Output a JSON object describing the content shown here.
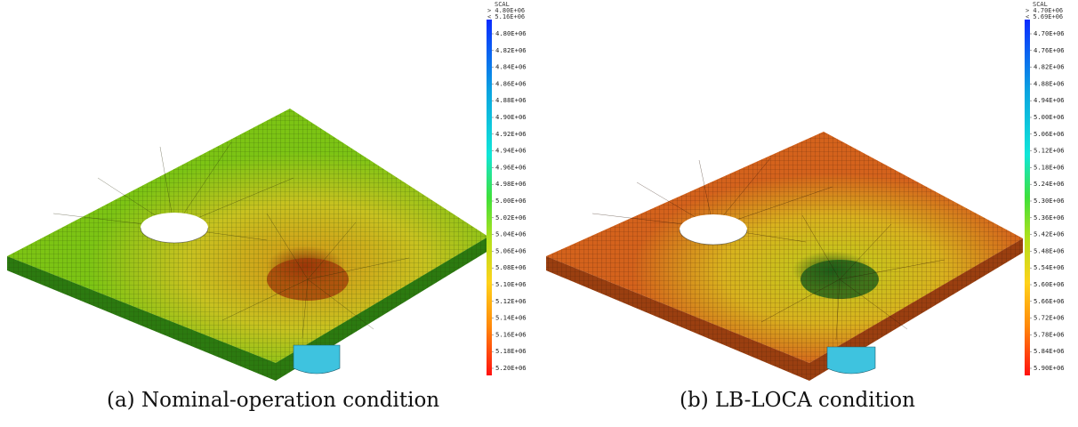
{
  "panels": [
    {
      "id": "a",
      "caption": "(a) Nominal-operation condition",
      "colorbar": {
        "title": "SCAL",
        "header_top": "> 4.80E+06",
        "header_bottom": "< 5.16E+06",
        "ticks": [
          "4.80E+06",
          "4.82E+06",
          "4.84E+06",
          "4.86E+06",
          "4.88E+06",
          "4.90E+06",
          "4.92E+06",
          "4.94E+06",
          "4.96E+06",
          "4.98E+06",
          "5.00E+06",
          "5.02E+06",
          "5.04E+06",
          "5.06E+06",
          "5.08E+06",
          "5.10E+06",
          "5.12E+06",
          "5.14E+06",
          "5.16E+06",
          "5.18E+06",
          "5.20E+06"
        ]
      },
      "colors": {
        "plate": "#7cc414",
        "plate_warm": "#c9b81c",
        "edge": "#2c7a10",
        "hotspot": "#a33a0a",
        "hole": "#ffffff",
        "stud": "#3ec3df"
      }
    },
    {
      "id": "b",
      "caption": "(b) LB-LOCA condition",
      "colorbar": {
        "title": "SCAL",
        "header_top": "> 4.70E+06",
        "header_bottom": "< 5.69E+06",
        "ticks": [
          "4.70E+06",
          "4.76E+06",
          "4.82E+06",
          "4.88E+06",
          "4.94E+06",
          "5.00E+06",
          "5.06E+06",
          "5.12E+06",
          "5.18E+06",
          "5.24E+06",
          "5.30E+06",
          "5.36E+06",
          "5.42E+06",
          "5.48E+06",
          "5.54E+06",
          "5.60E+06",
          "5.66E+06",
          "5.72E+06",
          "5.78E+06",
          "5.84E+06",
          "5.90E+06"
        ]
      },
      "colors": {
        "plate": "#d4621c",
        "plate_warm": "#d8b21e",
        "edge": "#9a3f10",
        "hotspot": "#1e5f1a",
        "hole": "#ffffff",
        "stud": "#3ec3df"
      }
    }
  ]
}
